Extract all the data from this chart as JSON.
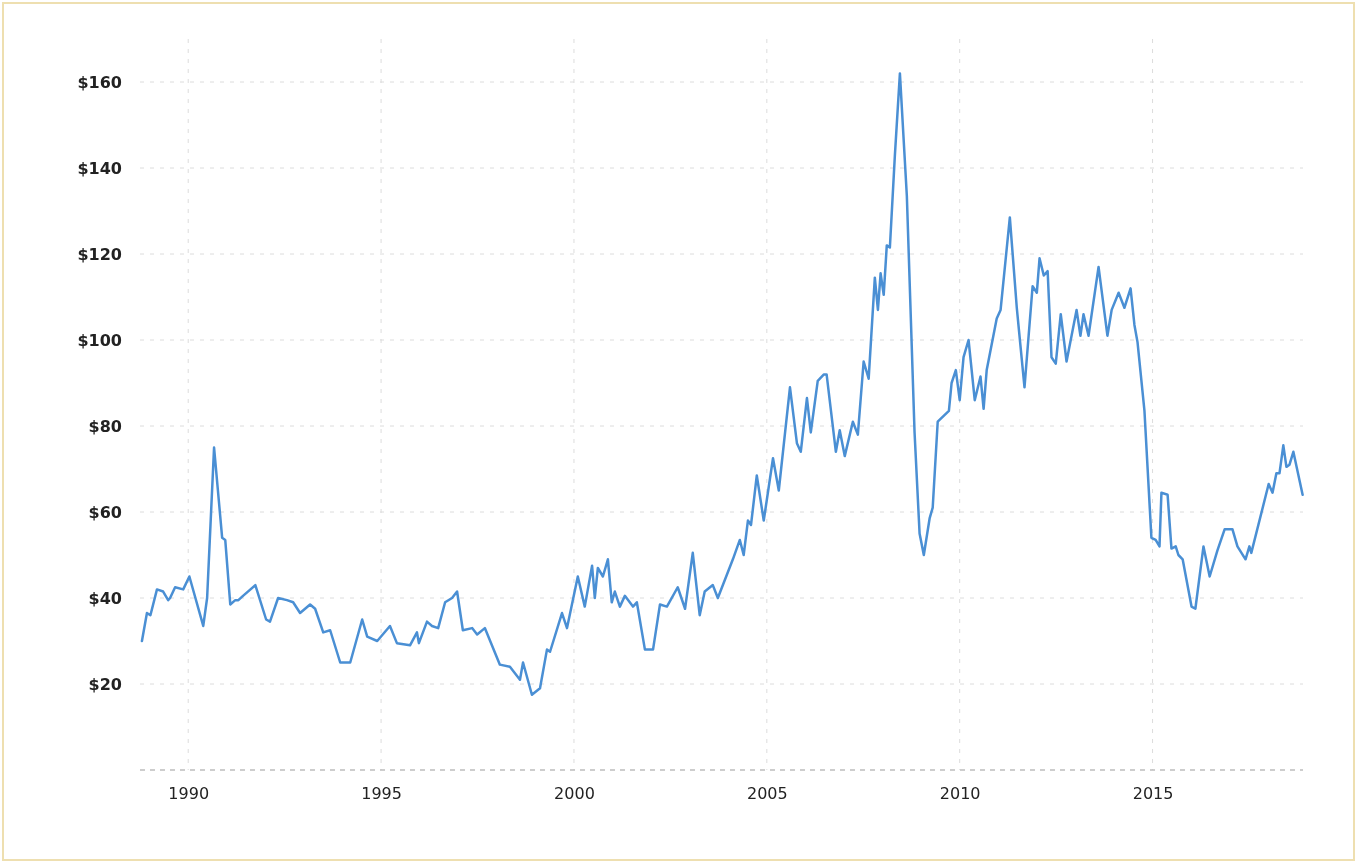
{
  "chart_data": {
    "type": "line",
    "xlim": [
      1988.75,
      2018.9
    ],
    "ylim": [
      0,
      170
    ],
    "xticks": [
      1990,
      1995,
      2000,
      2005,
      2010,
      2015
    ],
    "yticks": [
      {
        "value": 20,
        "label": "$20"
      },
      {
        "value": 40,
        "label": "$40"
      },
      {
        "value": 60,
        "label": "$60"
      },
      {
        "value": 80,
        "label": "$80"
      },
      {
        "value": 100,
        "label": "$100"
      },
      {
        "value": 120,
        "label": "$120"
      },
      {
        "value": 140,
        "label": "$140"
      },
      {
        "value": 160,
        "label": "$160"
      }
    ],
    "grid": true,
    "line_style": "solid",
    "marker": "none",
    "series": [
      {
        "color": "#4a8fd4",
        "x": [
          1988.8,
          1988.93,
          1989.02,
          1989.19,
          1989.35,
          1989.48,
          1989.53,
          1989.66,
          1989.87,
          1990.03,
          1990.39,
          1990.49,
          1990.67,
          1990.88,
          1990.96,
          1991.09,
          1991.22,
          1991.3,
          1991.42,
          1991.74,
          1992.02,
          1992.12,
          1992.33,
          1992.56,
          1992.72,
          1992.9,
          1993.16,
          1993.29,
          1993.5,
          1993.68,
          1993.94,
          1994.2,
          1994.51,
          1994.64,
          1994.9,
          1995.23,
          1995.41,
          1995.75,
          1995.93,
          1995.98,
          1996.19,
          1996.32,
          1996.48,
          1996.66,
          1996.84,
          1996.97,
          1997.12,
          1997.36,
          1997.49,
          1997.69,
          1998.08,
          1998.34,
          1998.6,
          1998.68,
          1998.91,
          1999.12,
          1999.3,
          1999.38,
          1999.69,
          1999.82,
          2000.1,
          2000.28,
          2000.47,
          2000.54,
          2000.62,
          2000.75,
          2000.88,
          2000.98,
          2001.06,
          2001.19,
          2001.32,
          2001.53,
          2001.63,
          2001.84,
          2002.05,
          2002.23,
          2002.41,
          2002.69,
          2002.88,
          2003.08,
          2003.26,
          2003.39,
          2003.6,
          2003.73,
          2004.12,
          2004.3,
          2004.4,
          2004.51,
          2004.59,
          2004.74,
          2004.92,
          2005.16,
          2005.31,
          2005.6,
          2005.78,
          2005.88,
          2006.04,
          2006.14,
          2006.32,
          2006.48,
          2006.55,
          2006.79,
          2006.89,
          2007.02,
          2007.23,
          2007.36,
          2007.51,
          2007.64,
          2007.8,
          2007.88,
          2007.95,
          2008.03,
          2008.11,
          2008.19,
          2008.32,
          2008.45,
          2008.63,
          2008.83,
          2008.96,
          2009.07,
          2009.22,
          2009.3,
          2009.43,
          2009.72,
          2009.79,
          2009.9,
          2010.0,
          2010.1,
          2010.23,
          2010.39,
          2010.54,
          2010.62,
          2010.7,
          2010.96,
          2011.06,
          2011.3,
          2011.48,
          2011.68,
          2011.89,
          2012.0,
          2012.07,
          2012.18,
          2012.28,
          2012.38,
          2012.49,
          2012.62,
          2012.77,
          2013.03,
          2013.13,
          2013.21,
          2013.34,
          2013.6,
          2013.83,
          2013.94,
          2014.12,
          2014.27,
          2014.43,
          2014.53,
          2014.61,
          2014.79,
          2014.97,
          2015.08,
          2015.18,
          2015.23,
          2015.39,
          2015.49,
          2015.6,
          2015.67,
          2015.78,
          2016.01,
          2016.11,
          2016.32,
          2016.48,
          2016.68,
          2016.87,
          2017.07,
          2017.2,
          2017.41,
          2017.51,
          2017.56,
          2018.01,
          2018.11,
          2018.21,
          2018.29,
          2018.39,
          2018.47,
          2018.55,
          2018.65,
          2018.89
        ],
        "values": [
          30,
          36.5,
          36,
          42,
          41.5,
          39.5,
          40,
          42.5,
          42,
          45,
          33.5,
          40,
          75,
          54,
          53.5,
          38.5,
          39.5,
          39.5,
          40.5,
          43,
          35,
          34.5,
          40,
          39.5,
          39,
          36.5,
          38.5,
          37.5,
          32,
          32.5,
          25,
          25,
          35,
          31,
          30,
          33.5,
          29.5,
          29,
          32,
          29.5,
          34.5,
          33.5,
          33,
          39,
          40,
          41.5,
          32.5,
          33,
          31.5,
          33,
          24.5,
          24,
          21,
          25,
          17.5,
          19,
          28,
          27.5,
          36.5,
          33,
          45,
          38,
          47.5,
          40,
          47,
          45,
          49,
          39,
          41.5,
          38,
          40.5,
          38,
          39,
          28,
          28,
          38.5,
          38,
          42.5,
          37.5,
          50.5,
          36,
          41.5,
          43,
          40,
          49,
          53.5,
          50,
          58,
          57,
          68.5,
          58,
          72.5,
          65,
          89,
          76,
          74,
          86.5,
          78.5,
          90.5,
          92,
          92,
          74,
          79,
          73,
          81,
          78,
          95,
          91,
          114.5,
          107,
          115.5,
          110.5,
          122,
          121.5,
          143,
          162,
          133.5,
          78.5,
          55,
          50,
          58.5,
          61,
          81,
          83.5,
          90,
          93,
          86,
          96,
          100,
          86,
          91.5,
          84,
          93,
          105,
          107,
          128.5,
          107.5,
          89,
          112.5,
          111,
          119,
          115,
          116,
          96,
          94.5,
          106,
          95,
          107,
          101,
          106,
          101,
          117,
          101,
          107,
          111,
          107.5,
          112,
          103.5,
          99.5,
          83.5,
          54,
          53.5,
          52,
          64.5,
          64,
          51.5,
          52,
          50,
          49,
          38,
          37.5,
          52,
          45,
          51,
          56,
          56,
          52,
          49,
          52,
          50.5,
          66.5,
          64.5,
          69,
          69,
          75.5,
          70.5,
          71,
          74,
          64
        ]
      }
    ]
  }
}
